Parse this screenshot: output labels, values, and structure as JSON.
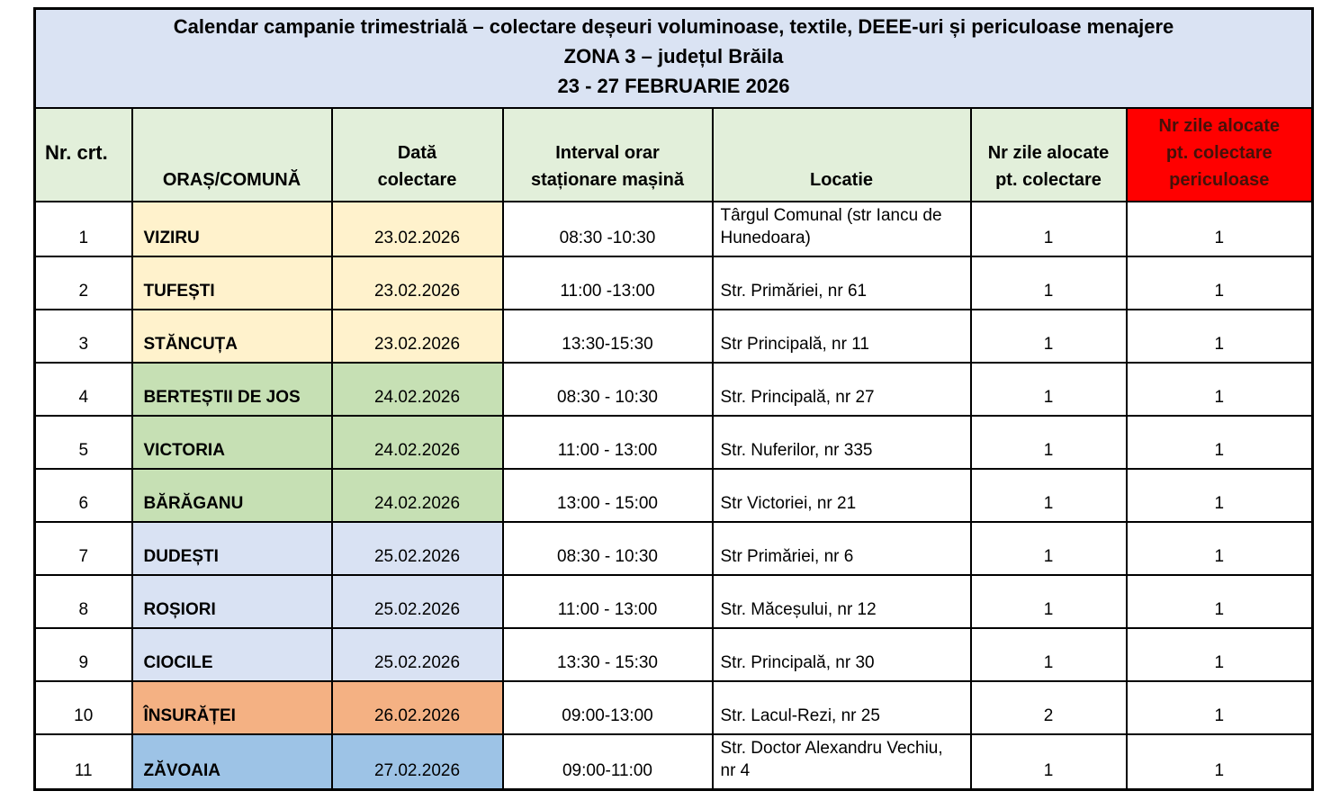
{
  "title": {
    "text": "Calendar campanie trimestrială – colectare deșeuri voluminoase, textile, DEEE-uri și periculoase menajere\nZONA 3 – județul Brăila\n23 - 27 FEBRUARIE 2026"
  },
  "table": {
    "columns": [
      {
        "label": "Nr. crt."
      },
      {
        "label": "ORAȘ/COMUNĂ"
      },
      {
        "label": "Dată\ncolectare"
      },
      {
        "label": "Interval orar\nstaționare mașină"
      },
      {
        "label": "Locatie"
      },
      {
        "label": "Nr zile alocate\npt. colectare"
      },
      {
        "label": "Nr zile alocate\npt. colectare\npericuloase"
      }
    ],
    "rows": [
      {
        "nr": "1",
        "oras": "VIZIRU",
        "data": "23.02.2026",
        "interval": "08:30 -10:30",
        "locatie": "Târgul Comunal (str Iancu de Hunedoara)",
        "zile": "1",
        "zile_periculoase": "1",
        "group": "day1"
      },
      {
        "nr": "2",
        "oras": "TUFEȘTI",
        "data": "23.02.2026",
        "interval": "11:00 -13:00",
        "locatie": "Str. Primăriei, nr 61",
        "zile": "1",
        "zile_periculoase": "1",
        "group": "day1"
      },
      {
        "nr": "3",
        "oras": "STĂNCUȚA",
        "data": "23.02.2026",
        "interval": "13:30-15:30",
        "locatie": "Str Principală, nr 11",
        "zile": "1",
        "zile_periculoase": "1",
        "group": "day1"
      },
      {
        "nr": "4",
        "oras": "BERTEȘTII DE JOS",
        "data": "24.02.2026",
        "interval": "08:30 - 10:30",
        "locatie": "Str. Principală, nr 27",
        "zile": "1",
        "zile_periculoase": "1",
        "group": "day2"
      },
      {
        "nr": "5",
        "oras": "VICTORIA",
        "data": "24.02.2026",
        "interval": "11:00 - 13:00",
        "locatie": "Str. Nuferilor, nr 335",
        "zile": "1",
        "zile_periculoase": "1",
        "group": "day2"
      },
      {
        "nr": "6",
        "oras": "BĂRĂGANU",
        "data": "24.02.2026",
        "interval": "13:00 - 15:00",
        "locatie": "Str Victoriei, nr 21",
        "zile": "1",
        "zile_periculoase": "1",
        "group": "day2"
      },
      {
        "nr": "7",
        "oras": "DUDEȘTI",
        "data": "25.02.2026",
        "interval": "08:30 - 10:30",
        "locatie": "Str Primăriei, nr 6",
        "zile": "1",
        "zile_periculoase": "1",
        "group": "day3"
      },
      {
        "nr": "8",
        "oras": "ROȘIORI",
        "data": "25.02.2026",
        "interval": "11:00 - 13:00",
        "locatie": "Str. Măceșului, nr 12",
        "zile": "1",
        "zile_periculoase": "1",
        "group": "day3"
      },
      {
        "nr": "9",
        "oras": "CIOCILE",
        "data": "25.02.2026",
        "interval": "13:30 - 15:30",
        "locatie": "Str. Principală, nr 30",
        "zile": "1",
        "zile_periculoase": "1",
        "group": "day3"
      },
      {
        "nr": "10",
        "oras": "ÎNSURĂȚEI",
        "data": "26.02.2026",
        "interval": "09:00-13:00",
        "locatie": "Str. Lacul-Rezi, nr 25",
        "zile": "2",
        "zile_periculoase": "1",
        "group": "day4"
      },
      {
        "nr": "11",
        "oras": "ZĂVOAIA",
        "data": "27.02.2026",
        "interval": "09:00-11:00",
        "locatie": "Str. Doctor Alexandru Vechiu, nr 4",
        "zile": "1",
        "zile_periculoase": "1",
        "group": "day5"
      }
    ]
  },
  "colors": {
    "title_bg": "#DAE3F3",
    "header_bg": "#E2EFDA",
    "danger_header_bg": "#FF0000",
    "danger_header_text": "#451109",
    "day1": "#FFF2CC",
    "day2": "#C6E0B4",
    "day3": "#D9E2F3",
    "day4": "#F4B183",
    "day5": "#9DC3E6"
  }
}
